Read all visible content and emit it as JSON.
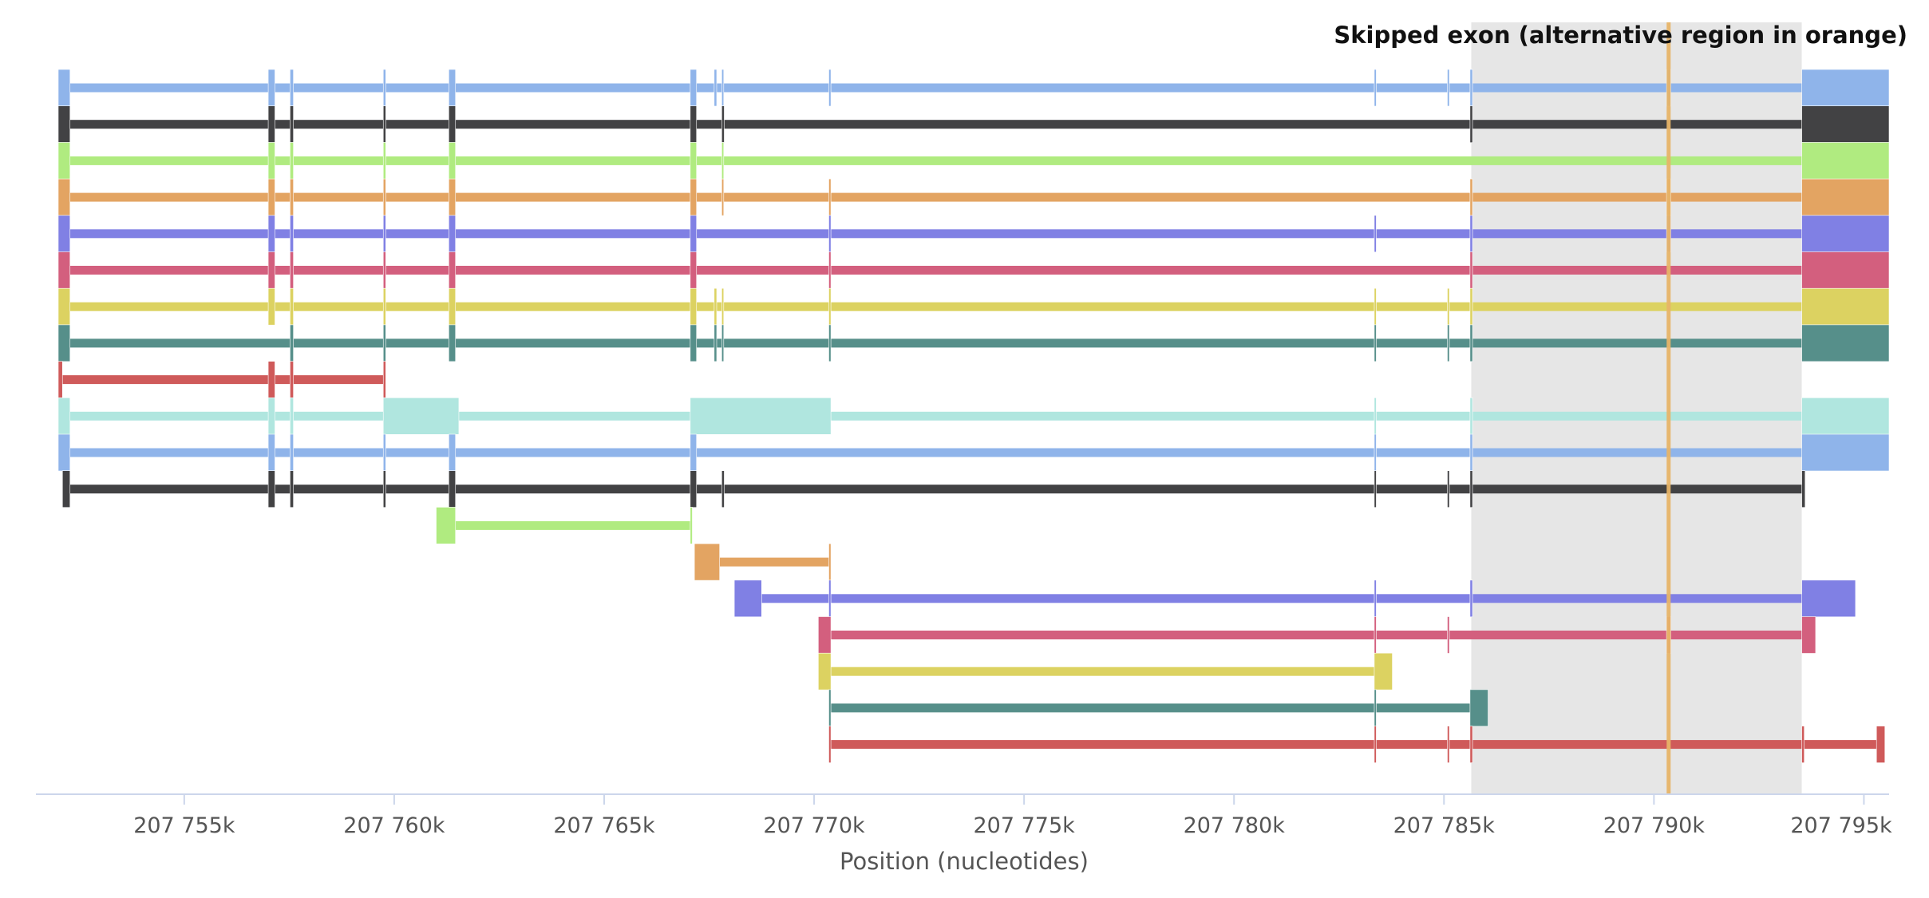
{
  "chart_data": {
    "type": "gene-structure",
    "title": "Skipped exon (alternative region in orange)",
    "xlabel": "Position (nucleotides)",
    "xlim": [
      207752000,
      207795600
    ],
    "x_ticks": [
      207755000,
      207760000,
      207765000,
      207770000,
      207775000,
      207780000,
      207785000,
      207790000,
      207795000
    ],
    "x_tick_labels": [
      "207 755k",
      "207 760k",
      "207 765k",
      "207 770k",
      "207 775k",
      "207 780k",
      "207 785k",
      "207 790k",
      "207 795k"
    ],
    "event_region": {
      "start": 207785650,
      "end": 207793520,
      "color": "#e6e6e6"
    },
    "alternative_exon": {
      "start": 207790300,
      "end": 207790400,
      "color": "#e7b468"
    },
    "transcripts": [
      {
        "color": "#8fb4ea",
        "exons": [
          [
            207752000,
            207752280
          ],
          [
            207757000,
            207757160
          ],
          [
            207757520,
            207757600
          ],
          [
            207759740,
            207759800
          ],
          [
            207761300,
            207761460
          ],
          [
            207767050,
            207767200
          ],
          [
            207767620,
            207767680
          ],
          [
            207767800,
            207767840
          ],
          [
            207770350,
            207770400
          ],
          [
            207783340,
            207783380
          ],
          [
            207785080,
            207785120
          ],
          [
            207785620,
            207785680
          ],
          [
            207790300,
            207790400
          ],
          [
            207793520,
            207795600
          ]
        ]
      },
      {
        "color": "#424244",
        "exons": [
          [
            207752000,
            207752280
          ],
          [
            207757000,
            207757160
          ],
          [
            207757520,
            207757600
          ],
          [
            207759740,
            207759800
          ],
          [
            207761300,
            207761460
          ],
          [
            207767050,
            207767200
          ],
          [
            207767800,
            207767860
          ],
          [
            207785620,
            207785680
          ],
          [
            207793520,
            207795600
          ]
        ]
      },
      {
        "color": "#b0eb80",
        "exons": [
          [
            207752000,
            207752280
          ],
          [
            207757000,
            207757160
          ],
          [
            207757520,
            207757600
          ],
          [
            207759740,
            207759800
          ],
          [
            207761300,
            207761460
          ],
          [
            207767050,
            207767200
          ],
          [
            207767800,
            207767840
          ],
          [
            207793520,
            207795600
          ]
        ]
      },
      {
        "color": "#e3a462",
        "exons": [
          [
            207752000,
            207752280
          ],
          [
            207757000,
            207757160
          ],
          [
            207757520,
            207757600
          ],
          [
            207759740,
            207759800
          ],
          [
            207761300,
            207761460
          ],
          [
            207767050,
            207767200
          ],
          [
            207767800,
            207767840
          ],
          [
            207770350,
            207770400
          ],
          [
            207785620,
            207785680
          ],
          [
            207790300,
            207790400
          ],
          [
            207793520,
            207795600
          ]
        ]
      },
      {
        "color": "#8080e4",
        "exons": [
          [
            207752000,
            207752280
          ],
          [
            207757000,
            207757160
          ],
          [
            207757520,
            207757600
          ],
          [
            207759740,
            207759800
          ],
          [
            207761300,
            207761460
          ],
          [
            207767050,
            207767200
          ],
          [
            207770350,
            207770400
          ],
          [
            207783340,
            207783380
          ],
          [
            207785620,
            207785680
          ],
          [
            207790300,
            207790400
          ],
          [
            207793520,
            207795600
          ]
        ]
      },
      {
        "color": "#d35f7e",
        "exons": [
          [
            207752000,
            207752280
          ],
          [
            207757000,
            207757160
          ],
          [
            207757520,
            207757600
          ],
          [
            207759740,
            207759800
          ],
          [
            207761300,
            207761460
          ],
          [
            207767050,
            207767200
          ],
          [
            207770350,
            207770400
          ],
          [
            207785620,
            207785680
          ],
          [
            207793520,
            207795600
          ]
        ]
      },
      {
        "color": "#dcd261",
        "exons": [
          [
            207752000,
            207752280
          ],
          [
            207757000,
            207757160
          ],
          [
            207757520,
            207757600
          ],
          [
            207759740,
            207759800
          ],
          [
            207761300,
            207761460
          ],
          [
            207767050,
            207767200
          ],
          [
            207767620,
            207767680
          ],
          [
            207767800,
            207767840
          ],
          [
            207770350,
            207770400
          ],
          [
            207783340,
            207783380
          ],
          [
            207785080,
            207785120
          ],
          [
            207785620,
            207785680
          ],
          [
            207793520,
            207795600
          ]
        ]
      },
      {
        "color": "#568f8a",
        "exons": [
          [
            207752000,
            207752280
          ],
          [
            207757520,
            207757600
          ],
          [
            207759740,
            207759800
          ],
          [
            207761300,
            207761460
          ],
          [
            207767050,
            207767200
          ],
          [
            207767620,
            207767680
          ],
          [
            207767800,
            207767840
          ],
          [
            207770350,
            207770400
          ],
          [
            207783340,
            207783380
          ],
          [
            207785080,
            207785120
          ],
          [
            207785620,
            207785680
          ],
          [
            207793520,
            207795600
          ]
        ]
      },
      {
        "color": "#cf5a5a",
        "exons": [
          [
            207752000,
            207752100
          ],
          [
            207757000,
            207757160
          ],
          [
            207757520,
            207757600
          ],
          [
            207759740,
            207759800
          ]
        ]
      },
      {
        "color": "#b0e6df",
        "exons": [
          [
            207752000,
            207752280
          ],
          [
            207757000,
            207757160
          ],
          [
            207757520,
            207757600
          ],
          [
            207759740,
            207761540
          ],
          [
            207767050,
            207770400
          ],
          [
            207783340,
            207783380
          ],
          [
            207785620,
            207785680
          ],
          [
            207793520,
            207795600
          ]
        ]
      },
      {
        "color": "#8fb4ea",
        "exons": [
          [
            207752000,
            207752280
          ],
          [
            207757000,
            207757160
          ],
          [
            207757520,
            207757600
          ],
          [
            207759740,
            207759800
          ],
          [
            207761300,
            207761460
          ],
          [
            207767050,
            207767200
          ],
          [
            207783340,
            207783380
          ],
          [
            207785620,
            207785680
          ],
          [
            207793520,
            207795600
          ]
        ]
      },
      {
        "color": "#424244",
        "exons": [
          [
            207752100,
            207752280
          ],
          [
            207757000,
            207757160
          ],
          [
            207757520,
            207757600
          ],
          [
            207759740,
            207759800
          ],
          [
            207761300,
            207761460
          ],
          [
            207767050,
            207767200
          ],
          [
            207767800,
            207767860
          ],
          [
            207783340,
            207783380
          ],
          [
            207785080,
            207785120
          ],
          [
            207785620,
            207785680
          ],
          [
            207793520,
            207793600
          ]
        ]
      },
      {
        "color": "#b0eb80",
        "exons": [
          [
            207761000,
            207761460
          ],
          [
            207767050,
            207767100
          ]
        ]
      },
      {
        "color": "#e3a462",
        "exons": [
          [
            207767150,
            207767750
          ],
          [
            207770350,
            207770400
          ]
        ]
      },
      {
        "color": "#8080e4",
        "exons": [
          [
            207768100,
            207768750
          ],
          [
            207770350,
            207770400
          ],
          [
            207783340,
            207783380
          ],
          [
            207785620,
            207785680
          ],
          [
            207793520,
            207794800
          ]
        ]
      },
      {
        "color": "#d35f7e",
        "exons": [
          [
            207770100,
            207770400
          ],
          [
            207783340,
            207783380
          ],
          [
            207785080,
            207785120
          ],
          [
            207790300,
            207790400
          ],
          [
            207793520,
            207793850
          ]
        ]
      },
      {
        "color": "#dcd261",
        "exons": [
          [
            207770100,
            207770400
          ],
          [
            207783340,
            207783770
          ]
        ]
      },
      {
        "color": "#568f8a",
        "exons": [
          [
            207770350,
            207770400
          ],
          [
            207783340,
            207783380
          ],
          [
            207785620,
            207786050
          ]
        ]
      },
      {
        "color": "#cf5a5a",
        "exons": [
          [
            207770350,
            207770400
          ],
          [
            207783340,
            207783380
          ],
          [
            207785080,
            207785120
          ],
          [
            207785620,
            207785680
          ],
          [
            207793520,
            207793580
          ],
          [
            207795300,
            207795500
          ]
        ]
      }
    ]
  }
}
